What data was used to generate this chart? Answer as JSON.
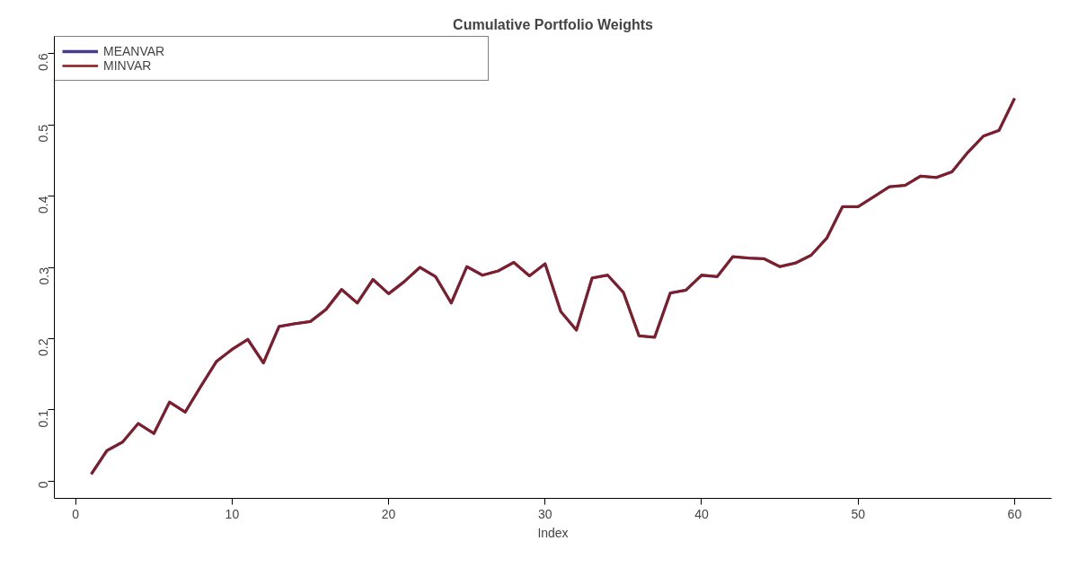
{
  "chart_data": {
    "type": "line",
    "title": "Cumulative Portfolio Weights",
    "xlabel": "Index",
    "x": [
      1,
      2,
      3,
      4,
      5,
      6,
      7,
      8,
      9,
      10,
      11,
      12,
      13,
      14,
      15,
      16,
      17,
      18,
      19,
      20,
      21,
      22,
      23,
      24,
      25,
      26,
      27,
      28,
      29,
      30,
      31,
      32,
      33,
      34,
      35,
      36,
      37,
      38,
      39,
      40,
      41,
      42,
      43,
      44,
      45,
      46,
      47,
      48,
      49,
      50,
      51,
      52,
      53,
      54,
      55,
      56,
      57,
      58,
      59,
      60
    ],
    "series": [
      {
        "name": "MEANVAR",
        "color": "#483d8b",
        "values": [
          0.01,
          0.043,
          0.055,
          0.081,
          0.067,
          0.111,
          0.097,
          0.133,
          0.168,
          0.185,
          0.199,
          0.166,
          0.217,
          0.221,
          0.224,
          0.241,
          0.269,
          0.25,
          0.283,
          0.263,
          0.28,
          0.3,
          0.287,
          0.25,
          0.301,
          0.289,
          0.295,
          0.307,
          0.288,
          0.305,
          0.238,
          0.212,
          0.285,
          0.289,
          0.265,
          0.204,
          0.202,
          0.264,
          0.268,
          0.289,
          0.287,
          0.315,
          0.313,
          0.312,
          0.301,
          0.306,
          0.317,
          0.341,
          0.385,
          0.385,
          0.399,
          0.413,
          0.415,
          0.428,
          0.426,
          0.434,
          0.461,
          0.484,
          0.492,
          0.537
        ]
      },
      {
        "name": "MINVAR",
        "color": "#8b1a1a",
        "values": [
          0.01,
          0.043,
          0.055,
          0.081,
          0.067,
          0.111,
          0.097,
          0.133,
          0.168,
          0.185,
          0.199,
          0.166,
          0.217,
          0.221,
          0.224,
          0.241,
          0.269,
          0.25,
          0.283,
          0.263,
          0.28,
          0.3,
          0.287,
          0.25,
          0.301,
          0.289,
          0.295,
          0.307,
          0.288,
          0.305,
          0.238,
          0.212,
          0.285,
          0.289,
          0.265,
          0.204,
          0.202,
          0.264,
          0.268,
          0.289,
          0.287,
          0.315,
          0.313,
          0.312,
          0.301,
          0.306,
          0.317,
          0.341,
          0.385,
          0.385,
          0.399,
          0.413,
          0.415,
          0.428,
          0.426,
          0.434,
          0.461,
          0.484,
          0.492,
          0.537
        ]
      }
    ],
    "xlim": [
      -1.36,
      62.36
    ],
    "ylim": [
      -0.024,
      0.624
    ],
    "xticks": [
      0,
      10,
      20,
      30,
      40,
      50,
      60
    ],
    "yticks": [
      0.0,
      0.1,
      0.2,
      0.3,
      0.4,
      0.5,
      0.6
    ],
    "legend": "top left",
    "grid": false,
    "line_style": "solid",
    "marker": "none"
  }
}
